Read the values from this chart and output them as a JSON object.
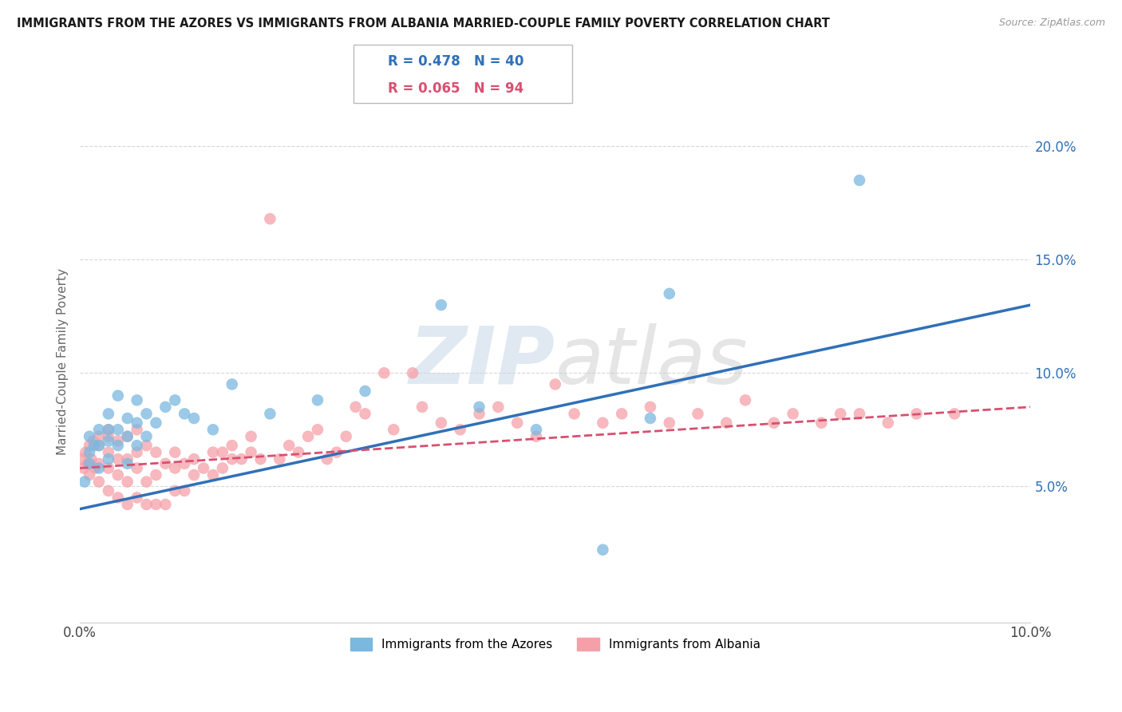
{
  "title": "IMMIGRANTS FROM THE AZORES VS IMMIGRANTS FROM ALBANIA MARRIED-COUPLE FAMILY POVERTY CORRELATION CHART",
  "source": "Source: ZipAtlas.com",
  "ylabel": "Married-Couple Family Poverty",
  "xlim": [
    0.0,
    0.1
  ],
  "ylim": [
    -0.01,
    0.22
  ],
  "xticks": [
    0.0,
    0.1
  ],
  "xticklabels": [
    "0.0%",
    "10.0%"
  ],
  "yticks": [
    0.05,
    0.1,
    0.15,
    0.2
  ],
  "yticklabels": [
    "5.0%",
    "10.0%",
    "15.0%",
    "20.0%"
  ],
  "azores_R": 0.478,
  "azores_N": 40,
  "albania_R": 0.065,
  "albania_N": 94,
  "azores_color": "#7ab8e0",
  "albania_color": "#f5a0a8",
  "azores_line_color": "#3070b8",
  "albania_line_color": "#d85070",
  "legend_label_azores": "Immigrants from the Azores",
  "legend_label_albania": "Immigrants from Albania",
  "watermark_zip": "ZIP",
  "watermark_atlas": "atlas",
  "background_color": "#ffffff",
  "grid_color": "#d8d8d8",
  "azores_trendline_x": [
    0.0,
    0.1
  ],
  "azores_trendline_y": [
    0.04,
    0.13
  ],
  "albania_trendline_x": [
    0.0,
    0.1
  ],
  "albania_trendline_y": [
    0.058,
    0.085
  ],
  "azores_scatter_x": [
    0.0005,
    0.001,
    0.001,
    0.001,
    0.0015,
    0.002,
    0.002,
    0.002,
    0.003,
    0.003,
    0.003,
    0.003,
    0.004,
    0.004,
    0.004,
    0.005,
    0.005,
    0.005,
    0.006,
    0.006,
    0.006,
    0.007,
    0.007,
    0.008,
    0.009,
    0.01,
    0.011,
    0.012,
    0.014,
    0.016,
    0.02,
    0.025,
    0.03,
    0.038,
    0.042,
    0.048,
    0.055,
    0.06,
    0.062,
    0.082
  ],
  "azores_scatter_y": [
    0.052,
    0.06,
    0.065,
    0.072,
    0.068,
    0.058,
    0.068,
    0.075,
    0.062,
    0.07,
    0.075,
    0.082,
    0.068,
    0.075,
    0.09,
    0.06,
    0.072,
    0.08,
    0.068,
    0.078,
    0.088,
    0.072,
    0.082,
    0.078,
    0.085,
    0.088,
    0.082,
    0.08,
    0.075,
    0.095,
    0.082,
    0.088,
    0.092,
    0.13,
    0.085,
    0.075,
    0.022,
    0.08,
    0.135,
    0.185
  ],
  "albania_scatter_x": [
    0.0002,
    0.0004,
    0.0006,
    0.0008,
    0.001,
    0.001,
    0.0012,
    0.0014,
    0.0016,
    0.002,
    0.002,
    0.002,
    0.002,
    0.003,
    0.003,
    0.003,
    0.003,
    0.003,
    0.004,
    0.004,
    0.004,
    0.004,
    0.005,
    0.005,
    0.005,
    0.005,
    0.006,
    0.006,
    0.006,
    0.006,
    0.007,
    0.007,
    0.007,
    0.008,
    0.008,
    0.008,
    0.009,
    0.009,
    0.01,
    0.01,
    0.01,
    0.011,
    0.011,
    0.012,
    0.012,
    0.013,
    0.014,
    0.014,
    0.015,
    0.015,
    0.016,
    0.016,
    0.017,
    0.018,
    0.018,
    0.019,
    0.02,
    0.021,
    0.022,
    0.023,
    0.024,
    0.025,
    0.026,
    0.027,
    0.028,
    0.029,
    0.03,
    0.032,
    0.033,
    0.035,
    0.036,
    0.038,
    0.04,
    0.042,
    0.044,
    0.046,
    0.048,
    0.05,
    0.052,
    0.055,
    0.057,
    0.06,
    0.062,
    0.065,
    0.068,
    0.07,
    0.073,
    0.075,
    0.078,
    0.08,
    0.082,
    0.085,
    0.088,
    0.092
  ],
  "albania_scatter_y": [
    0.062,
    0.058,
    0.065,
    0.06,
    0.055,
    0.068,
    0.062,
    0.07,
    0.058,
    0.052,
    0.06,
    0.068,
    0.072,
    0.048,
    0.058,
    0.065,
    0.072,
    0.075,
    0.045,
    0.055,
    0.062,
    0.07,
    0.042,
    0.052,
    0.062,
    0.072,
    0.045,
    0.058,
    0.065,
    0.075,
    0.042,
    0.052,
    0.068,
    0.042,
    0.055,
    0.065,
    0.042,
    0.06,
    0.048,
    0.058,
    0.065,
    0.048,
    0.06,
    0.055,
    0.062,
    0.058,
    0.055,
    0.065,
    0.058,
    0.065,
    0.062,
    0.068,
    0.062,
    0.065,
    0.072,
    0.062,
    0.168,
    0.062,
    0.068,
    0.065,
    0.072,
    0.075,
    0.062,
    0.065,
    0.072,
    0.085,
    0.082,
    0.1,
    0.075,
    0.1,
    0.085,
    0.078,
    0.075,
    0.082,
    0.085,
    0.078,
    0.072,
    0.095,
    0.082,
    0.078,
    0.082,
    0.085,
    0.078,
    0.082,
    0.078,
    0.088,
    0.078,
    0.082,
    0.078,
    0.082,
    0.082,
    0.078,
    0.082,
    0.082
  ]
}
